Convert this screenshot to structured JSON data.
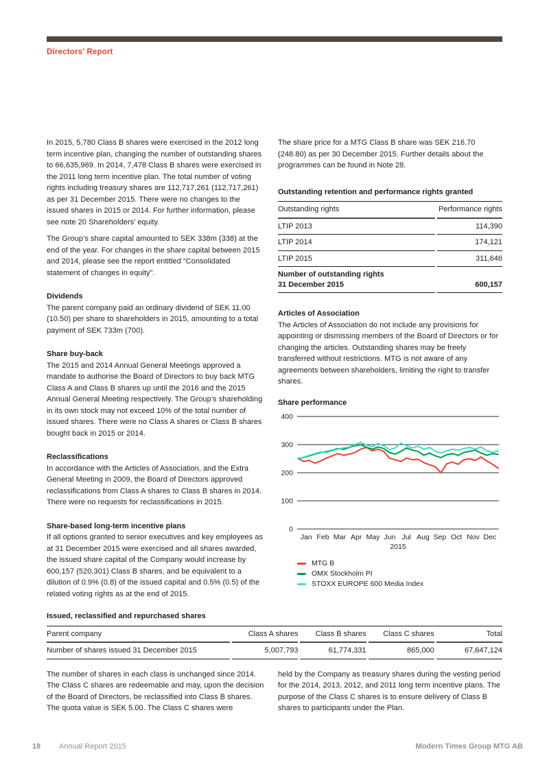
{
  "header": {
    "section_label": "Directors’ Report"
  },
  "left_column": {
    "para1": "In 2015, 5,780 Class B shares were exercised in the 2012 long term incentive plan, changing the number of outstanding shares to 66,635,969. In 2014, 7,478 Class B shares were exercised in the 2011 long term incentive plan. The total number of voting rights including treasury shares are 112,717,261 (112,717,261) as per 31 December 2015. There were no changes to the issued shares in 2015 or 2014. For further information, please see note 20 Shareholders’ equity.",
    "para2": "The Group’s share capital amounted to SEK 338m (338) at the end of the year. For changes in the share capital between 2015 and 2014, please see the report entitled “Consolidated statement of changes in equity”.",
    "sections": [
      {
        "heading": "Dividends",
        "body": "The parent company paid an ordinary dividend of SEK 11.00 (10.50) per share to shareholders in 2015, amounting to a total payment of SEK 733m (700)."
      },
      {
        "heading": "Share buy-back",
        "body": "The 2015 and 2014 Annual General Meetings approved a mandate to authorise the Board of Directors to buy back MTG Class A and Class B shares up until the 2016 and the 2015 Annual General Meeting respectively. The Group’s shareholding in its own stock may not exceed 10% of the total number of issued shares. There were no Class A shares or Class B shares bought back in 2015 or 2014."
      },
      {
        "heading": "Reclassifications",
        "body": "In accordance with the Articles of Association, and the Extra General Meeting in 2009, the Board of Directors approved reclassifications from Class A shares to Class B shares in 2014. There were no requests for reclassifications in 2015."
      },
      {
        "heading": "Share-based long-term incentive plans",
        "body": "If all options granted to senior executives and key employees as at 31 December 2015 were exercised and all shares awarded, the issued share capital of the Company would increase by 600,157 (520,301) Class B shares, and be equivalent to a dilution of 0.9% (0.8) of the issued capital and 0.5% (0.5) of the related voting rights as at the end of 2015."
      }
    ]
  },
  "right_column": {
    "para1": "The share price for a MTG Class B share was SEK 216.70 (248.80) as per 30 December 2015. Further details about the programmes can be found in Note 28.",
    "rights_table": {
      "title": "Outstanding retention and performance rights granted",
      "col1_header": "Outstanding rights",
      "col2_header": "Performance rights",
      "rows": [
        {
          "label": "LTIP 2013",
          "value": "114,390"
        },
        {
          "label": "LTIP 2014",
          "value": "174,121"
        },
        {
          "label": "LTIP 2015",
          "value": "311,646"
        }
      ],
      "total_label_line1": "Number of outstanding rights",
      "total_label_line2": "31 December 2015",
      "total_value": "600,157"
    },
    "articles": {
      "heading": "Articles of Association",
      "body": "The Articles of Association do not include any provisions for appointing or dismissing members of the Board of Directors or for changing the articles. Outstanding shares may be freely transferred without restrictions. MTG is not aware of any agreements between shareholders, limiting the right to transfer shares."
    }
  },
  "chart_data": {
    "type": "line",
    "title": "Share performance",
    "x_axis_label": "2015",
    "x_tick_labels": [
      "Jan",
      "Feb",
      "Mar",
      "Apr",
      "May",
      "Jun",
      "Jul",
      "Aug",
      "Sep",
      "Oct",
      "Nov",
      "Dec"
    ],
    "y_ticks": [
      400,
      300,
      200,
      100,
      0
    ],
    "ylim": [
      0,
      400
    ],
    "grid": "horizontal",
    "legend_position": "bottom-left",
    "points_per_month": 3,
    "series": [
      {
        "name": "MTG B",
        "color": "#ee3d33",
        "values": [
          252,
          240,
          244,
          234,
          242,
          252,
          260,
          268,
          262,
          266,
          272,
          284,
          290,
          278,
          284,
          276,
          252,
          246,
          240,
          252,
          246,
          248,
          236,
          228,
          222,
          200,
          232,
          238,
          230,
          246,
          250,
          244,
          256,
          242,
          230,
          216
        ]
      },
      {
        "name": "OMX Stockholm PI",
        "color": "#009a4c",
        "values": [
          250,
          254,
          260,
          266,
          272,
          275,
          280,
          286,
          283,
          290,
          296,
          300,
          290,
          284,
          292,
          286,
          272,
          266,
          276,
          288,
          280,
          276,
          262,
          270,
          260,
          254,
          264,
          268,
          262,
          272,
          276,
          280,
          270,
          262,
          268,
          265
        ]
      },
      {
        "name": "STOXX EUROPE 600 Media Index",
        "color": "#3edbd0",
        "values": [
          251,
          255,
          262,
          268,
          274,
          272,
          278,
          284,
          288,
          292,
          300,
          308,
          298,
          292,
          304,
          296,
          282,
          288,
          305,
          296,
          288,
          294,
          284,
          290,
          276,
          270,
          278,
          284,
          280,
          286,
          290,
          284,
          292,
          278,
          272,
          277
        ]
      }
    ]
  },
  "bottom_table": {
    "title": "Issued, reclassified and repurchased shares",
    "headers": [
      "Parent company",
      "Class A shares",
      "Class B shares",
      "Class C shares",
      "Total"
    ],
    "rows": [
      [
        "Number of shares issued 31 December 2015",
        "5,007,793",
        "61,774,331",
        "865,000",
        "67,647,124"
      ]
    ]
  },
  "bottom_text": {
    "left": "The number of shares in each class is unchanged since 2014. The Class C shares are redeemable and may, upon the decision of the Board of Directors, be reclassified into Class B shares. The quota value is SEK 5.00. The Class C shares were",
    "right": "held by the Company as treasury shares during the vesting period for the 2014, 2013, 2012, and 2011 long term incentive plans. The purpose of the Class C shares is to ensure delivery of Class B shares to participants under the Plan."
  },
  "footer": {
    "page_number": "18",
    "report_name": "Annual Report 2015",
    "company_name": "Modern Times Group MTG AB"
  },
  "colors": {
    "accent_red": "#e8402f",
    "bar_dark": "#4f4741",
    "footer_gray": "#8a939b",
    "mtgb_red": "#ee3d33",
    "omx_green": "#009a4c",
    "stoxx_cyan": "#3edbd0"
  }
}
